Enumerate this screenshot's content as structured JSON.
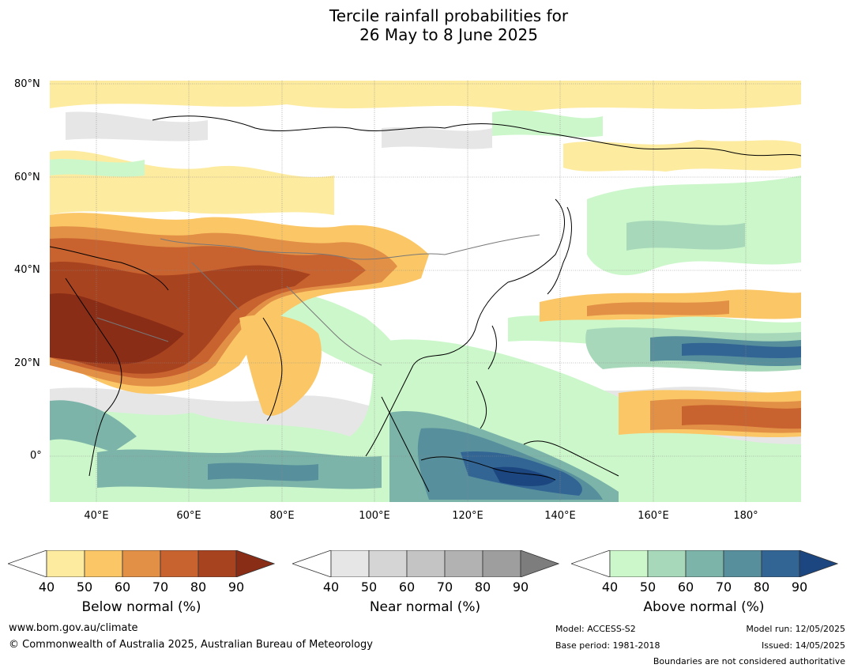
{
  "title": {
    "line1": "Tercile rainfall probabilities for",
    "line2": "26 May to 8 June 2025"
  },
  "map": {
    "lat_labels": [
      "80°N",
      "60°N",
      "40°N",
      "20°N",
      "0°"
    ],
    "lon_labels": [
      "40°E",
      "60°E",
      "80°E",
      "100°E",
      "120°E",
      "140°E",
      "160°E",
      "180°"
    ]
  },
  "colorbars": [
    {
      "name": "Below normal (%)",
      "ticks": [
        "40",
        "50",
        "60",
        "70",
        "80",
        "90"
      ],
      "colors": [
        "#ffffff",
        "#fdeba0",
        "#fbc766",
        "#e39047",
        "#c8622f",
        "#a8431f",
        "#8a2d17"
      ]
    },
    {
      "name": "Near normal (%)",
      "ticks": [
        "40",
        "50",
        "60",
        "70",
        "80",
        "90"
      ],
      "colors": [
        "#ffffff",
        "#e6e6e6",
        "#d5d5d5",
        "#c4c4c4",
        "#b2b2b2",
        "#9e9e9e",
        "#7d7d7d"
      ]
    },
    {
      "name": "Above normal (%)",
      "ticks": [
        "40",
        "50",
        "60",
        "70",
        "80",
        "90"
      ],
      "colors": [
        "#ffffff",
        "#ccf7cb",
        "#a7d8ba",
        "#7cb4a9",
        "#57909c",
        "#336594",
        "#1b4680"
      ]
    }
  ],
  "footer": {
    "website": "www.bom.gov.au/climate",
    "copyright": "© Commonwealth of Australia 2025, Australian Bureau of Meteorology",
    "model": "Model: ACCESS-S2",
    "base_period": "Base period: 1981-2018",
    "model_run": "Model run: 12/05/2025",
    "issued": "Issued: 14/05/2025",
    "disclaimer": "Boundaries are not considered authoritative"
  }
}
